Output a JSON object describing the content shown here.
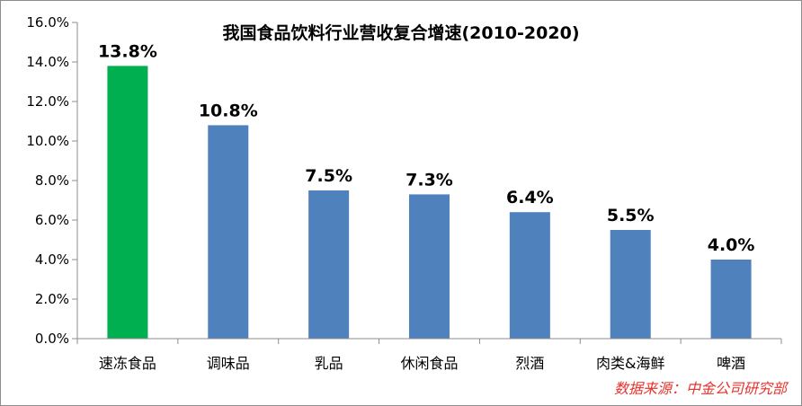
{
  "chart_data": {
    "type": "bar",
    "title": "我国食品饮料行业营收复合增速(2010-2020)",
    "categories": [
      "速冻食品",
      "调味品",
      "乳品",
      "休闲食品",
      "烈酒",
      "肉类&海鲜",
      "啤酒"
    ],
    "values": [
      13.8,
      10.8,
      7.5,
      7.3,
      6.4,
      5.5,
      4.0
    ],
    "data_labels": [
      "13.8%",
      "10.8%",
      "7.5%",
      "7.3%",
      "6.4%",
      "5.5%",
      "4.0%"
    ],
    "ylim": [
      0,
      16
    ],
    "y_ticks": [
      0,
      2,
      4,
      6,
      8,
      10,
      12,
      14,
      16
    ],
    "y_tick_labels": [
      "0.0%",
      "2.0%",
      "4.0%",
      "6.0%",
      "8.0%",
      "10.0%",
      "12.0%",
      "14.0%",
      "16.0%"
    ],
    "xlabel": "",
    "ylabel": "",
    "grid": false,
    "legend": "none",
    "colors": {
      "highlight": "#00b050",
      "default": "#4f81bd",
      "axis": "#8c8c8c",
      "source_text": "#e8322b"
    },
    "highlight_index": 0
  },
  "source_note": "数据来源：中金公司研究部"
}
